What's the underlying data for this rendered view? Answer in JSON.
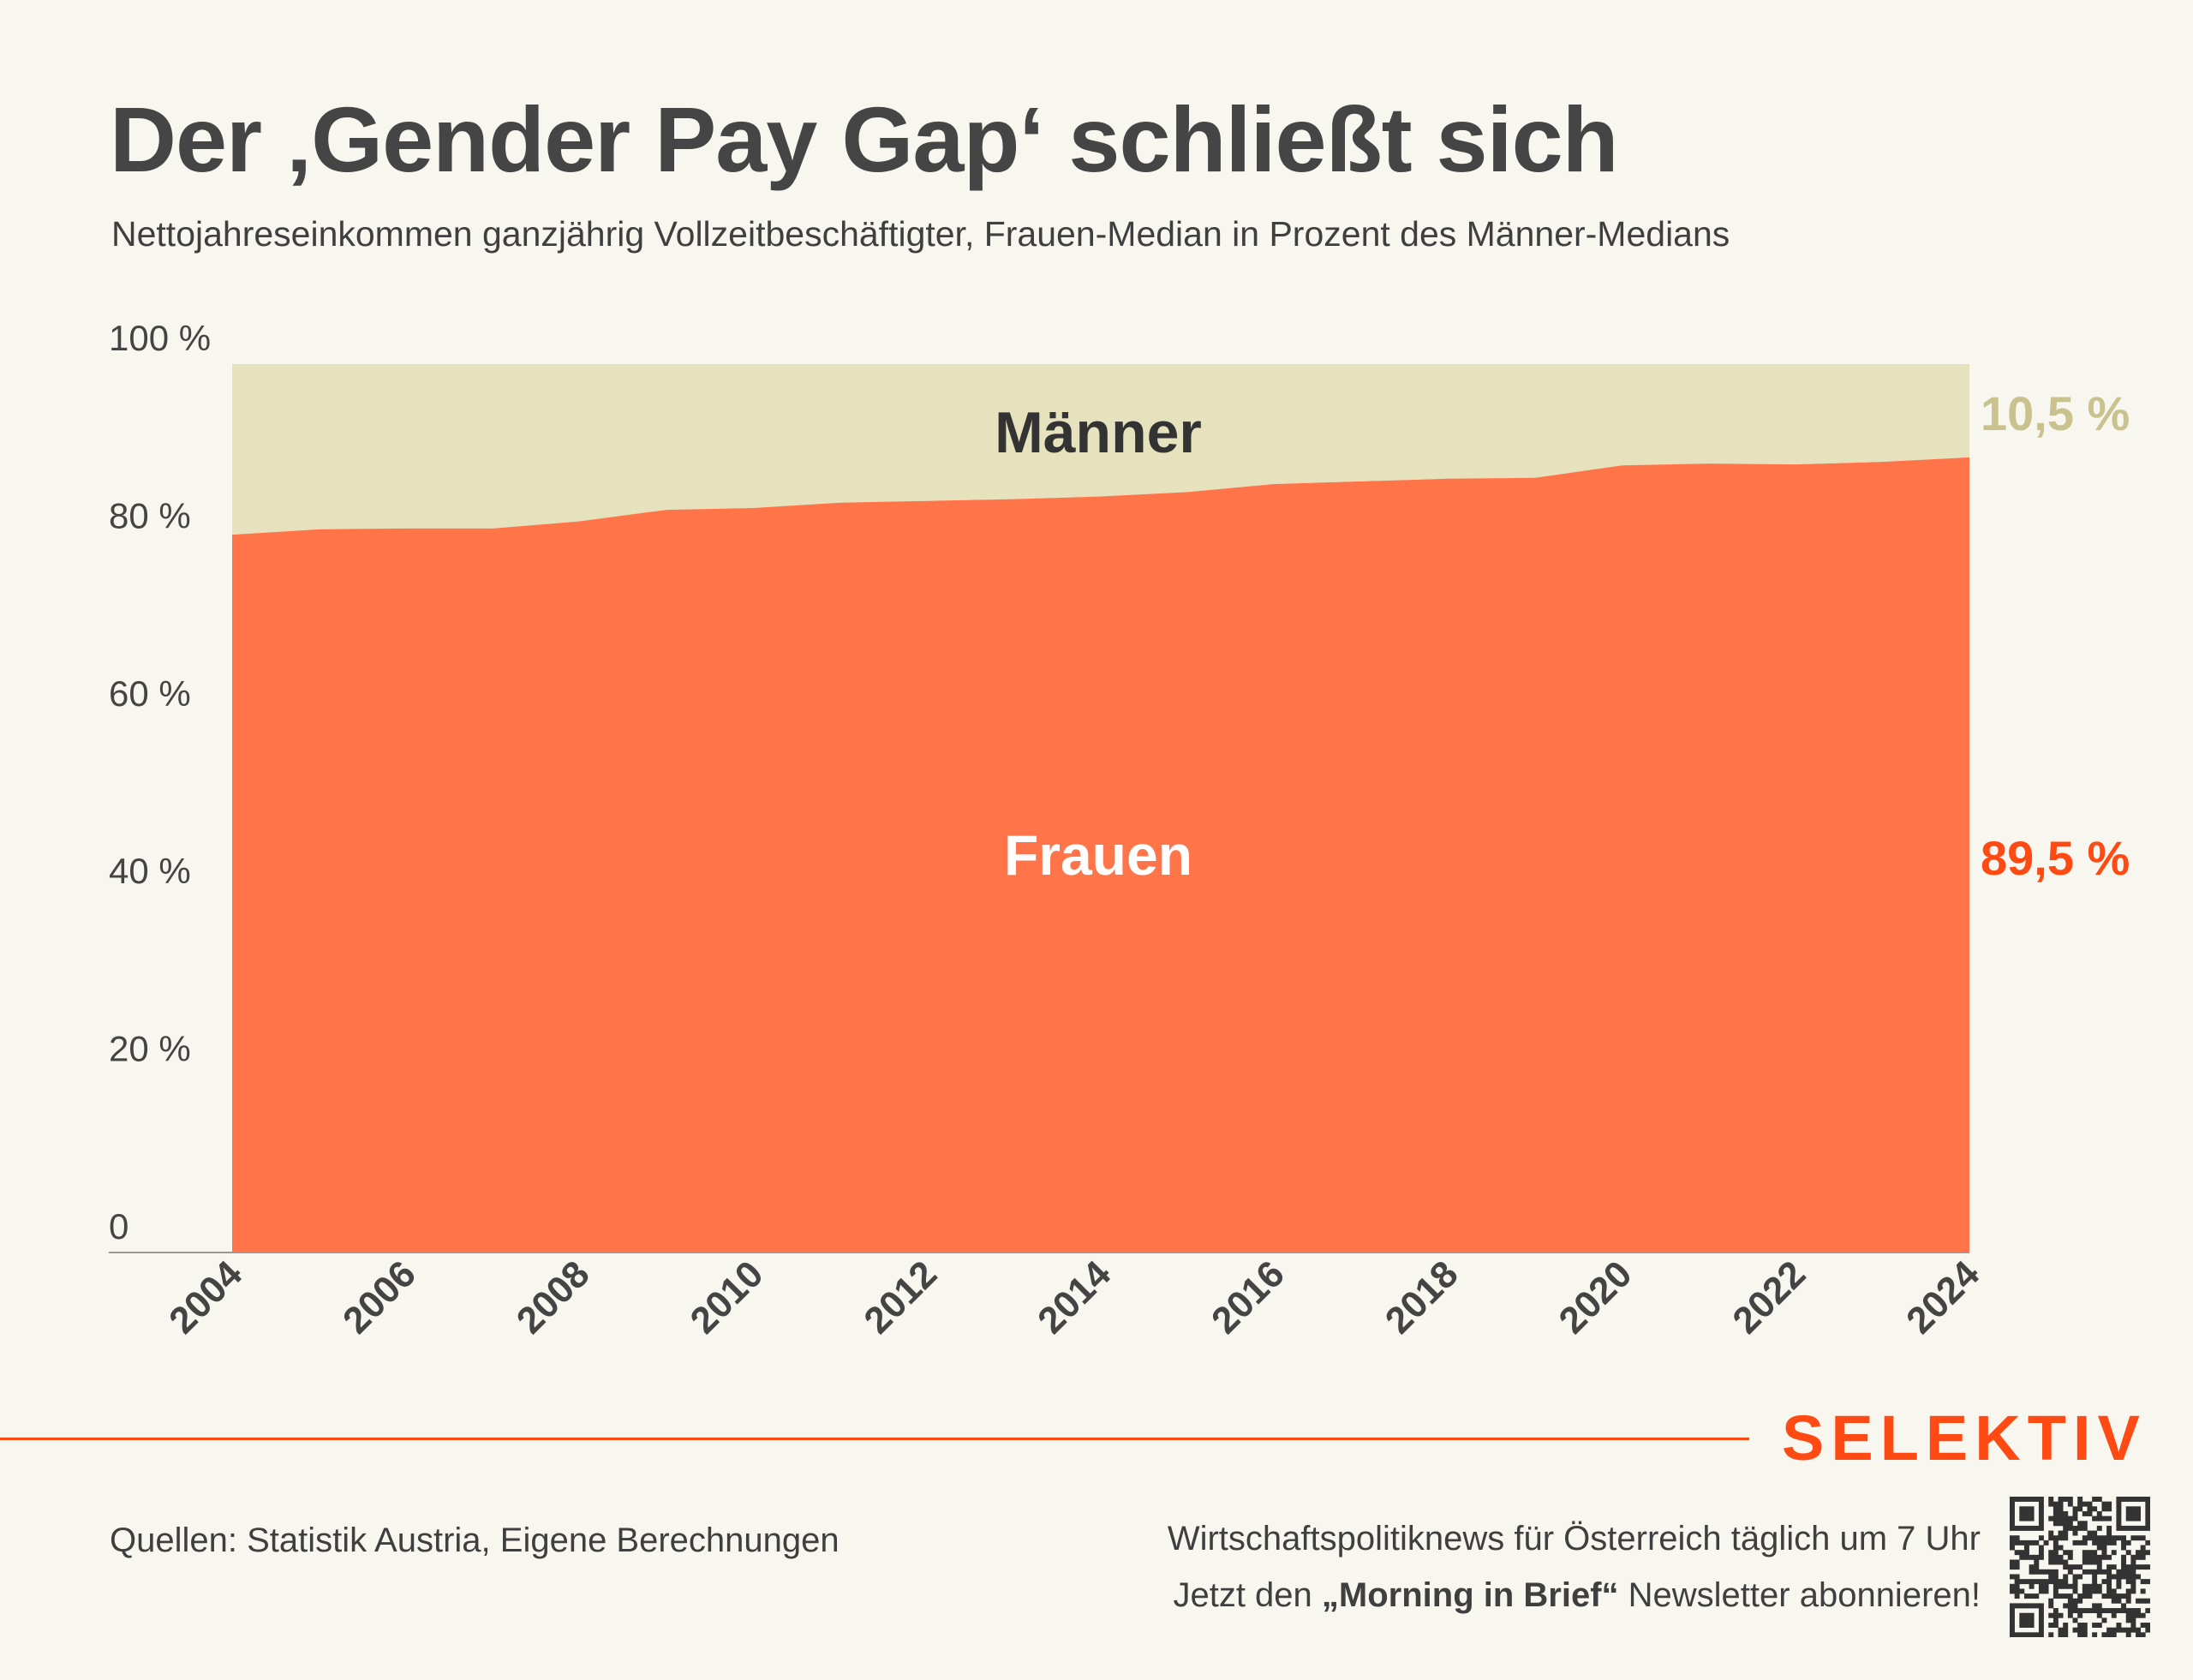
{
  "header": {
    "title": "Der ‚Gender Pay Gap‘ schließt sich",
    "subtitle": "Nettojahreseinkommen ganzjährig Vollzeitbeschäftigter, Frauen-Median in Prozent des Männer-Medians"
  },
  "chart_data": {
    "type": "area",
    "title": "Der ‚Gender Pay Gap‘ schließt sich",
    "subtitle": "Nettojahreseinkommen ganzjährig Vollzeitbeschäftigter, Frauen-Median in Prozent des Männer-Medians",
    "stacked": true,
    "x": [
      2004,
      2005,
      2006,
      2007,
      2008,
      2009,
      2010,
      2011,
      2012,
      2013,
      2014,
      2015,
      2016,
      2017,
      2018,
      2019,
      2020,
      2021,
      2022,
      2023,
      2024
    ],
    "series": [
      {
        "name": "Frauen",
        "color": "#FF7448",
        "values": [
          80.8,
          81.4,
          81.5,
          81.5,
          82.3,
          83.6,
          83.8,
          84.4,
          84.6,
          84.8,
          85.1,
          85.6,
          86.5,
          86.8,
          87.1,
          87.2,
          88.6,
          88.8,
          88.7,
          89.0,
          89.5
        ]
      },
      {
        "name": "Männer",
        "color": "#E6E2BE",
        "values": [
          19.2,
          18.6,
          18.5,
          18.5,
          17.7,
          16.4,
          16.2,
          15.6,
          15.4,
          15.2,
          14.9,
          14.4,
          13.5,
          13.2,
          12.9,
          12.8,
          11.4,
          11.2,
          11.3,
          11.0,
          10.5
        ]
      }
    ],
    "ylim": [
      0,
      100
    ],
    "yticks": [
      0,
      20,
      40,
      60,
      80,
      100
    ],
    "ytick_labels": [
      "0",
      "20 %",
      "40 %",
      "60 %",
      "80 %",
      "100 %"
    ],
    "xtick_labels": [
      "2004",
      "2006",
      "2008",
      "2010",
      "2012",
      "2014",
      "2016",
      "2018",
      "2020",
      "2022",
      "2024"
    ],
    "area_labels": {
      "maenner": "Männer",
      "frauen": "Frauen"
    },
    "end_labels": {
      "maenner": "10,5 %",
      "frauen": "89,5 %"
    },
    "end_label_colors": {
      "maenner": "#C9C28F",
      "frauen": "#FF4A14"
    },
    "grid": false,
    "xlabel": "",
    "ylabel": ""
  },
  "footer": {
    "brand": "SELEKTIV",
    "source": "Quellen: Statistik Austria, Eigene Berechnungen",
    "promo_line1": "Wirtschaftspolitiknews für Österreich täglich um 7 Uhr",
    "promo_line2_pre": "Jetzt den ",
    "promo_line2_bold": "„Morning in Brief“",
    "promo_line2_post": " Newsletter abonnieren!"
  }
}
